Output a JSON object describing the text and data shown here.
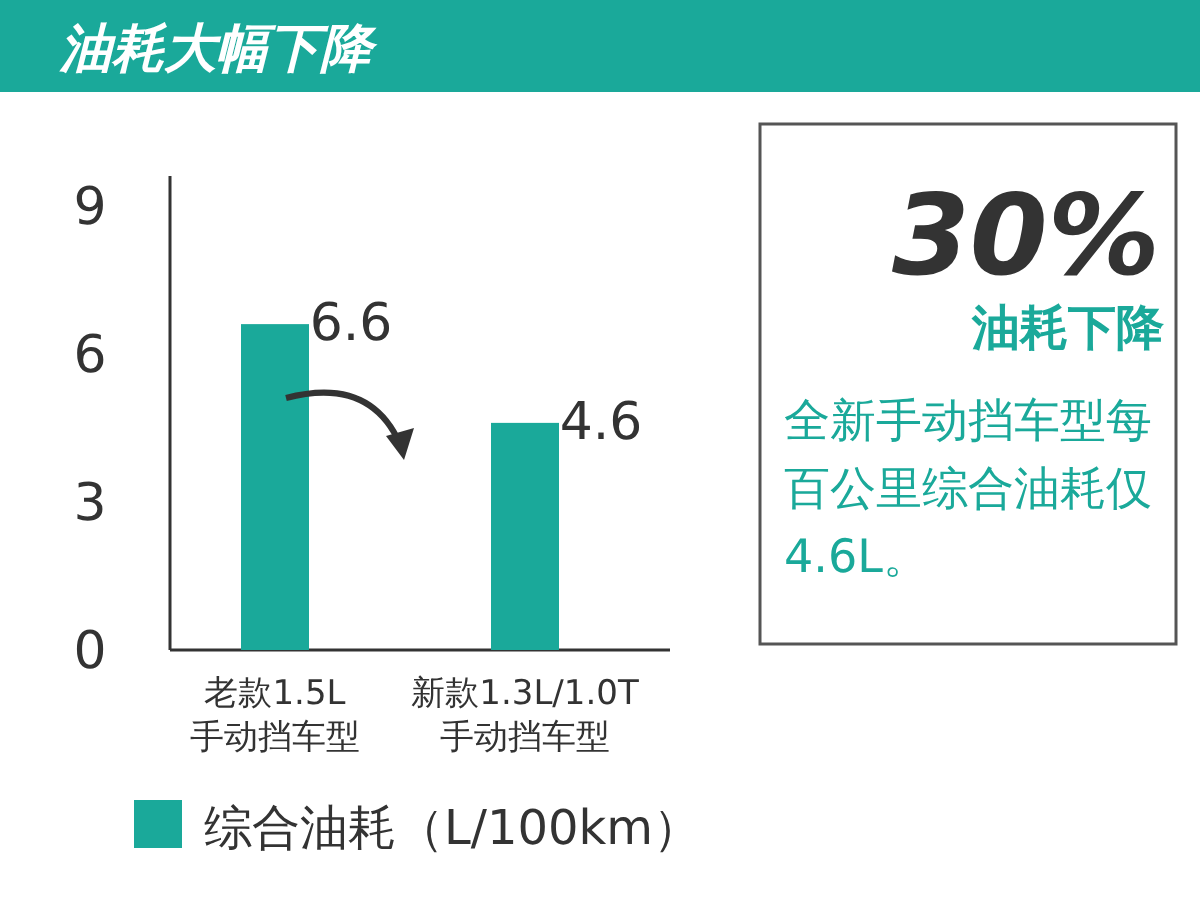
{
  "chart_data": {
    "type": "bar",
    "title": "油耗大幅下降",
    "categories": [
      "老款1.5L\n手动挡车型",
      "新款1.3L/1.0T\n手动挡车型"
    ],
    "series": [
      {
        "name": "综合油耗（L/100km）",
        "color": "#1aa99a",
        "values": [
          6.6,
          4.6
        ]
      }
    ],
    "data_labels": true,
    "ylim": [
      0,
      9.6
    ],
    "yticks": [
      0,
      3,
      6,
      9
    ],
    "grid": false,
    "legend": "bottom",
    "annotations": [
      "30%",
      "油耗下降",
      "全新手动挡车型每百公里综合油耗仅4.6L。"
    ]
  }
}
